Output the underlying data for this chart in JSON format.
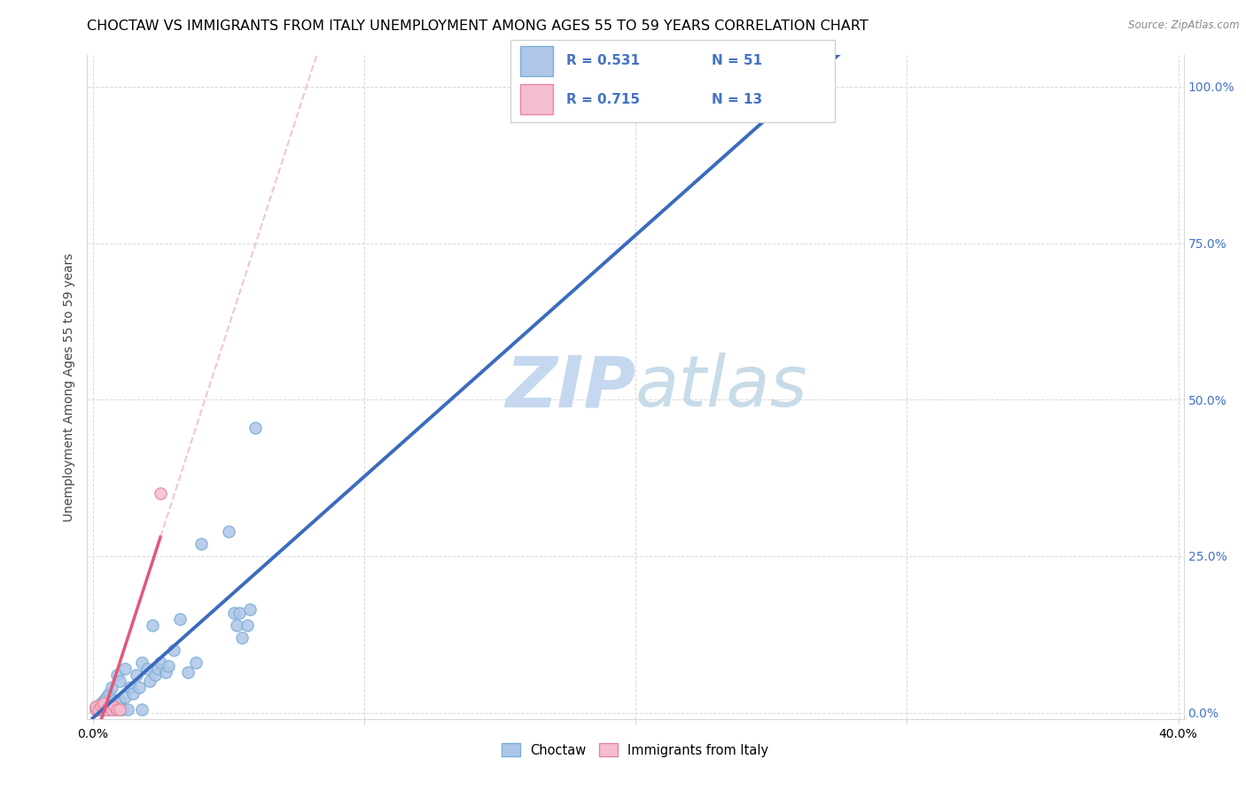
{
  "title": "CHOCTAW VS IMMIGRANTS FROM ITALY UNEMPLOYMENT AMONG AGES 55 TO 59 YEARS CORRELATION CHART",
  "source": "Source: ZipAtlas.com",
  "ylabel": "Unemployment Among Ages 55 to 59 years",
  "xlim": [
    -0.002,
    0.402
  ],
  "ylim": [
    -0.01,
    1.05
  ],
  "x_ticks": [
    0.0,
    0.1,
    0.2,
    0.3,
    0.4
  ],
  "x_tick_labels": [
    "0.0%",
    "",
    "",
    "",
    "40.0%"
  ],
  "y_ticks_right": [
    0.0,
    0.25,
    0.5,
    0.75,
    1.0
  ],
  "y_tick_labels_right": [
    "0.0%",
    "25.0%",
    "50.0%",
    "75.0%",
    "100.0%"
  ],
  "choctaw_color": "#aec6e8",
  "choctaw_edge_color": "#7bafd4",
  "italy_color": "#f5bdd0",
  "italy_edge_color": "#e8869e",
  "choctaw_line_color": "#3a6bbf",
  "italy_line_color": "#e05878",
  "italy_line_dash_color": "#e8a0b0",
  "R_choctaw": 0.531,
  "N_choctaw": 51,
  "R_italy": 0.715,
  "N_italy": 13,
  "legend_text_color": "#4472c4",
  "watermark_zip_color": "#c5d8f0",
  "watermark_atlas_color": "#c8dbe8",
  "bg_color": "#ffffff",
  "grid_color": "#d8d8d8",
  "title_fontsize": 11.5,
  "axis_label_fontsize": 10,
  "tick_fontsize": 10,
  "marker_size": 90,
  "choctaw_x": [
    0.001,
    0.001,
    0.002,
    0.003,
    0.003,
    0.004,
    0.004,
    0.005,
    0.005,
    0.005,
    0.006,
    0.006,
    0.007,
    0.007,
    0.008,
    0.008,
    0.009,
    0.009,
    0.01,
    0.01,
    0.011,
    0.012,
    0.012,
    0.013,
    0.014,
    0.015,
    0.016,
    0.017,
    0.018,
    0.018,
    0.02,
    0.021,
    0.022,
    0.023,
    0.024,
    0.025,
    0.027,
    0.028,
    0.03,
    0.032,
    0.035,
    0.038,
    0.04,
    0.05,
    0.052,
    0.053,
    0.054,
    0.055,
    0.057,
    0.058,
    0.06
  ],
  "choctaw_y": [
    0.005,
    0.01,
    0.005,
    0.01,
    0.015,
    0.005,
    0.02,
    0.01,
    0.02,
    0.025,
    0.005,
    0.03,
    0.01,
    0.04,
    0.005,
    0.02,
    0.015,
    0.06,
    0.02,
    0.05,
    0.005,
    0.025,
    0.07,
    0.005,
    0.04,
    0.03,
    0.06,
    0.04,
    0.005,
    0.08,
    0.07,
    0.05,
    0.14,
    0.06,
    0.07,
    0.08,
    0.065,
    0.075,
    0.1,
    0.15,
    0.065,
    0.08,
    0.27,
    0.29,
    0.16,
    0.14,
    0.16,
    0.12,
    0.14,
    0.165,
    0.455
  ],
  "italy_x": [
    0.001,
    0.001,
    0.002,
    0.003,
    0.004,
    0.004,
    0.005,
    0.006,
    0.007,
    0.008,
    0.009,
    0.01,
    0.025
  ],
  "italy_y": [
    0.005,
    0.01,
    0.005,
    0.01,
    0.005,
    0.015,
    0.005,
    0.01,
    0.005,
    0.01,
    0.005,
    0.005,
    0.35
  ]
}
